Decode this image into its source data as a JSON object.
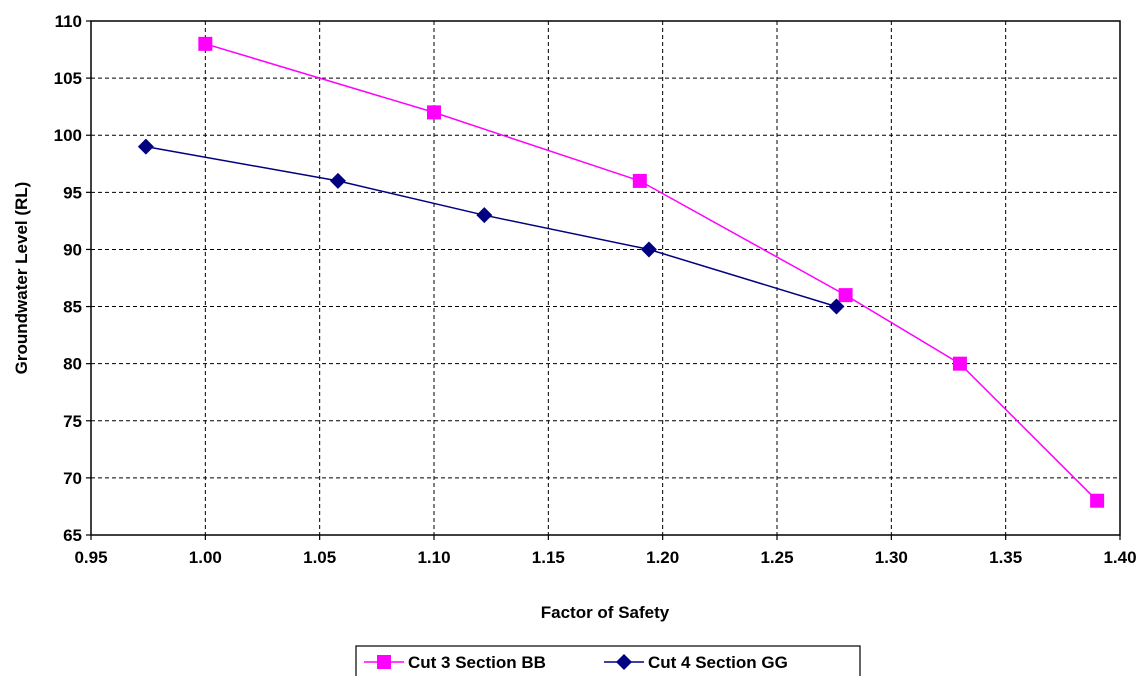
{
  "chart_data": {
    "type": "line",
    "title": "",
    "xlabel": "Factor of Safety",
    "ylabel": "Groundwater Level (RL)",
    "xlim": [
      0.95,
      1.4
    ],
    "ylim": [
      65,
      110
    ],
    "xticks": [
      "0.95",
      "1.00",
      "1.05",
      "1.10",
      "1.15",
      "1.20",
      "1.25",
      "1.30",
      "1.35",
      "1.40"
    ],
    "yticks": [
      "65",
      "70",
      "75",
      "80",
      "85",
      "90",
      "95",
      "100",
      "105",
      "110"
    ],
    "grid": true,
    "legend_position": "bottom",
    "series": [
      {
        "name": "Cut 3 Section BB",
        "color": "#ff00ff",
        "marker": "square",
        "points": [
          {
            "x": 1.0,
            "y": 108
          },
          {
            "x": 1.1,
            "y": 102
          },
          {
            "x": 1.19,
            "y": 96
          },
          {
            "x": 1.28,
            "y": 86
          },
          {
            "x": 1.33,
            "y": 80
          },
          {
            "x": 1.39,
            "y": 68
          }
        ]
      },
      {
        "name": "Cut 4 Section GG",
        "color": "#000080",
        "marker": "diamond",
        "points": [
          {
            "x": 0.974,
            "y": 99
          },
          {
            "x": 1.058,
            "y": 96
          },
          {
            "x": 1.122,
            "y": 93
          },
          {
            "x": 1.194,
            "y": 90
          },
          {
            "x": 1.276,
            "y": 85
          }
        ]
      }
    ]
  }
}
